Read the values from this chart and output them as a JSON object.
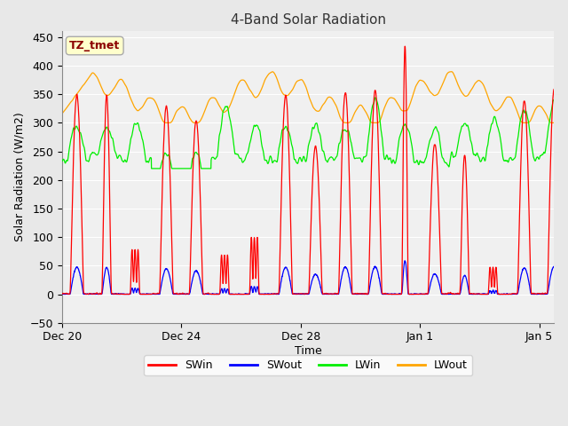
{
  "title": "4-Band Solar Radiation",
  "xlabel": "Time",
  "ylabel": "Solar Radiation (W/m2)",
  "annotation_text": "TZ_tmet",
  "annotation_color": "#8B0000",
  "annotation_bg": "#FFFFCC",
  "annotation_edge": "#AAAAAA",
  "ylim": [
    -50,
    460
  ],
  "yticks": [
    -50,
    0,
    50,
    100,
    150,
    200,
    250,
    300,
    350,
    400,
    450
  ],
  "fig_bg": "#E8E8E8",
  "plot_bg": "#F0F0F0",
  "grid_color": "white",
  "colors": {
    "SWin": "#FF0000",
    "SWout": "#0000FF",
    "LWin": "#00EE00",
    "LWout": "#FFA500"
  },
  "legend_labels": [
    "SWin",
    "SWout",
    "LWin",
    "LWout"
  ],
  "x_tick_labels": [
    "Dec 20",
    "Dec 24",
    "Dec 28",
    "Jan 1",
    "Jan 5"
  ],
  "x_tick_positions": [
    0,
    4,
    8,
    12,
    16
  ],
  "num_days": 17,
  "seed": 12345
}
